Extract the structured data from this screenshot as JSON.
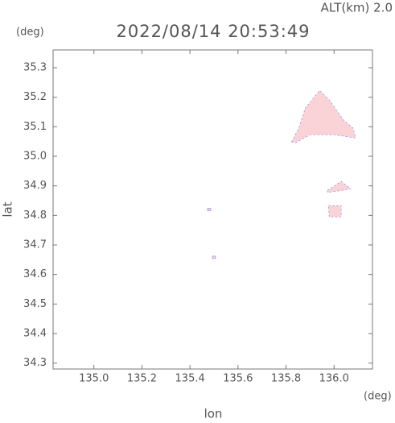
{
  "chart_data": {
    "type": "map",
    "title": "2022/08/14 20:53:49",
    "altitude_label": "ALT(km) 2.0",
    "y_unit": "(deg)",
    "x_unit": "(deg)",
    "xlabel": "lon",
    "ylabel": "lat",
    "xlim": [
      134.83,
      136.16
    ],
    "ylim": [
      34.28,
      35.36
    ],
    "xticks": [
      {
        "value": 135.0,
        "label": "135.0"
      },
      135.2,
      135.4,
      135.6,
      135.8,
      {
        "value": 136.0,
        "label": "136.0"
      }
    ],
    "yticks": [
      34.3,
      34.4,
      34.5,
      34.6,
      34.7,
      34.8,
      34.9,
      {
        "value": 35.0,
        "label": "35.0"
      },
      35.1,
      35.2,
      35.3
    ],
    "color": "#f9d3d6",
    "edge_color": "#6b6bff",
    "regions": [
      {
        "lon": [
          135.823,
          135.853,
          135.88,
          135.94,
          135.98,
          136.04,
          136.08,
          136.09,
          136.0,
          135.9,
          135.84
        ],
        "lat": [
          35.049,
          35.095,
          35.163,
          35.223,
          35.191,
          35.122,
          35.095,
          35.062,
          35.073,
          35.073,
          35.046
        ]
      },
      {
        "lon": [
          135.973,
          136.03,
          136.07,
          135.973
        ],
        "lat": [
          34.885,
          34.915,
          34.89,
          34.877
        ]
      },
      {
        "lon": [
          135.977,
          136.03,
          136.03,
          135.98
        ],
        "lat": [
          34.833,
          34.833,
          34.795,
          34.795
        ]
      }
    ],
    "points": {
      "lon": [
        135.5,
        135.48
      ],
      "lat": [
        34.658,
        34.82
      ]
    }
  }
}
